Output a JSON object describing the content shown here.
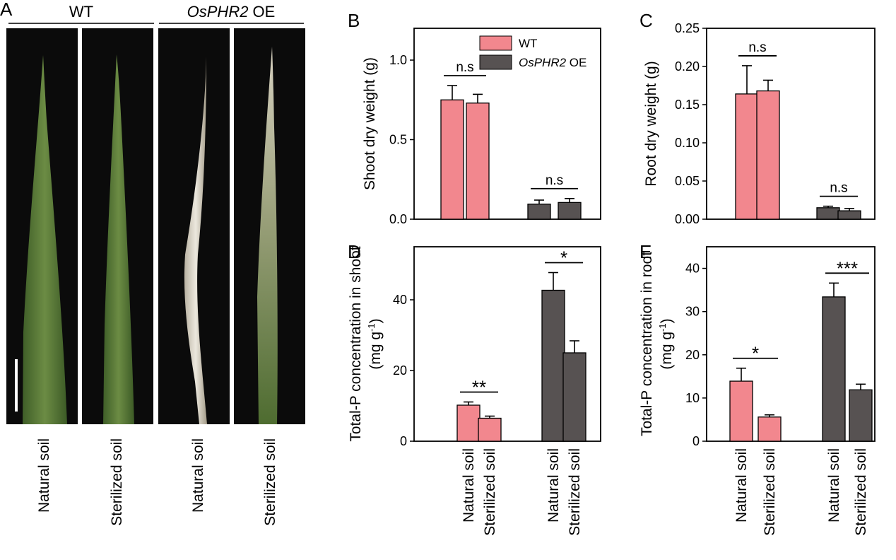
{
  "colors": {
    "wt": "#f2878e",
    "oe": "#575252",
    "leaf_bg": "#0b0b0b",
    "leaf_wt": "#5a7a3a",
    "leaf_oe": "#d9d4c8"
  },
  "panel_a": {
    "label": "A",
    "header_wt": "WT",
    "header_oe_italic": "OsPHR2",
    "header_oe_suffix": " OE",
    "leaves": [
      {
        "type": "wt",
        "caption": "Natural soil"
      },
      {
        "type": "wt",
        "caption": "Sterilized soil"
      },
      {
        "type": "oe",
        "caption": "Natural soil"
      },
      {
        "type": "oe",
        "caption": "Sterilized soil"
      }
    ]
  },
  "legend": [
    {
      "label": "WT",
      "italic": "",
      "suffix": "",
      "color_key": "wt"
    },
    {
      "label": "",
      "italic": "OsPHR2",
      "suffix": " OE",
      "color_key": "oe"
    }
  ],
  "x_categories": [
    "Natural soil",
    "Sterilized soil",
    "Natural soil",
    "Sterilized soil"
  ],
  "chart_data": [
    {
      "panel": "B",
      "type": "bar",
      "ylabel": "Shoot dry weight (g)",
      "ylabel_sup": "",
      "ylabel_tail": "",
      "ylabel2": "",
      "ylim": [
        0,
        1.2
      ],
      "yticks": [
        0.0,
        0.5,
        1.0
      ],
      "tick_format": 1,
      "groups": [
        "WT",
        "OsPHR2 OE"
      ],
      "categories": [
        "Natural soil",
        "Sterilized soil",
        "Natural soil",
        "Sterilized soil"
      ],
      "values": [
        0.75,
        0.73,
        0.095,
        0.105
      ],
      "errors": [
        0.09,
        0.055,
        0.025,
        0.025
      ],
      "significance": [
        {
          "pair": [
            0,
            1
          ],
          "label": "n.s"
        },
        {
          "pair": [
            2,
            3
          ],
          "label": "n.s"
        }
      ],
      "show_xlabels": false
    },
    {
      "panel": "C",
      "type": "bar",
      "ylabel": "Root dry weight (g)",
      "ylabel_sup": "",
      "ylabel_tail": "",
      "ylabel2": "",
      "ylim": [
        0,
        0.25
      ],
      "yticks": [
        0.0,
        0.05,
        0.1,
        0.15,
        0.2,
        0.25
      ],
      "tick_format": 2,
      "groups": [
        "WT",
        "OsPHR2 OE"
      ],
      "categories": [
        "Natural soil",
        "Sterilized soil",
        "Natural soil",
        "Sterilized soil"
      ],
      "values": [
        0.164,
        0.168,
        0.015,
        0.011
      ],
      "errors": [
        0.037,
        0.014,
        0.002,
        0.003
      ],
      "significance": [
        {
          "pair": [
            0,
            1
          ],
          "label": "n.s"
        },
        {
          "pair": [
            2,
            3
          ],
          "label": "n.s"
        }
      ],
      "show_xlabels": false
    },
    {
      "panel": "D",
      "type": "bar",
      "ylabel": "Total-P concentration in shoot",
      "ylabel2": "(mg g",
      "ylabel_sup": "-1",
      "ylabel_tail": ")",
      "ylim": [
        0,
        55
      ],
      "yticks": [
        0,
        20,
        40
      ],
      "tick_format": 0,
      "groups": [
        "WT",
        "OsPHR2 OE"
      ],
      "categories": [
        "Natural soil",
        "Sterilized soil",
        "Natural soil",
        "Sterilized soil"
      ],
      "values": [
        10.2,
        6.5,
        42.7,
        25.0
      ],
      "errors": [
        0.9,
        0.6,
        5.0,
        3.4
      ],
      "significance": [
        {
          "pair": [
            0,
            1
          ],
          "label": "**"
        },
        {
          "pair": [
            2,
            3
          ],
          "label": "*"
        }
      ],
      "show_xlabels": true
    },
    {
      "panel": "E",
      "type": "bar",
      "ylabel": "Total-P concentration in root",
      "ylabel2": "(mg g",
      "ylabel_sup": "-1",
      "ylabel_tail": ")",
      "ylim": [
        0,
        45
      ],
      "yticks": [
        0,
        10,
        20,
        30,
        40
      ],
      "tick_format": 0,
      "groups": [
        "WT",
        "OsPHR2 OE"
      ],
      "categories": [
        "Natural soil",
        "Sterilized soil",
        "Natural soil",
        "Sterilized soil"
      ],
      "values": [
        13.9,
        5.6,
        33.4,
        11.9
      ],
      "errors": [
        3.0,
        0.5,
        3.2,
        1.3
      ],
      "significance": [
        {
          "pair": [
            0,
            1
          ],
          "label": "*"
        },
        {
          "pair": [
            2,
            3
          ],
          "label": "***"
        }
      ],
      "show_xlabels": true
    }
  ]
}
